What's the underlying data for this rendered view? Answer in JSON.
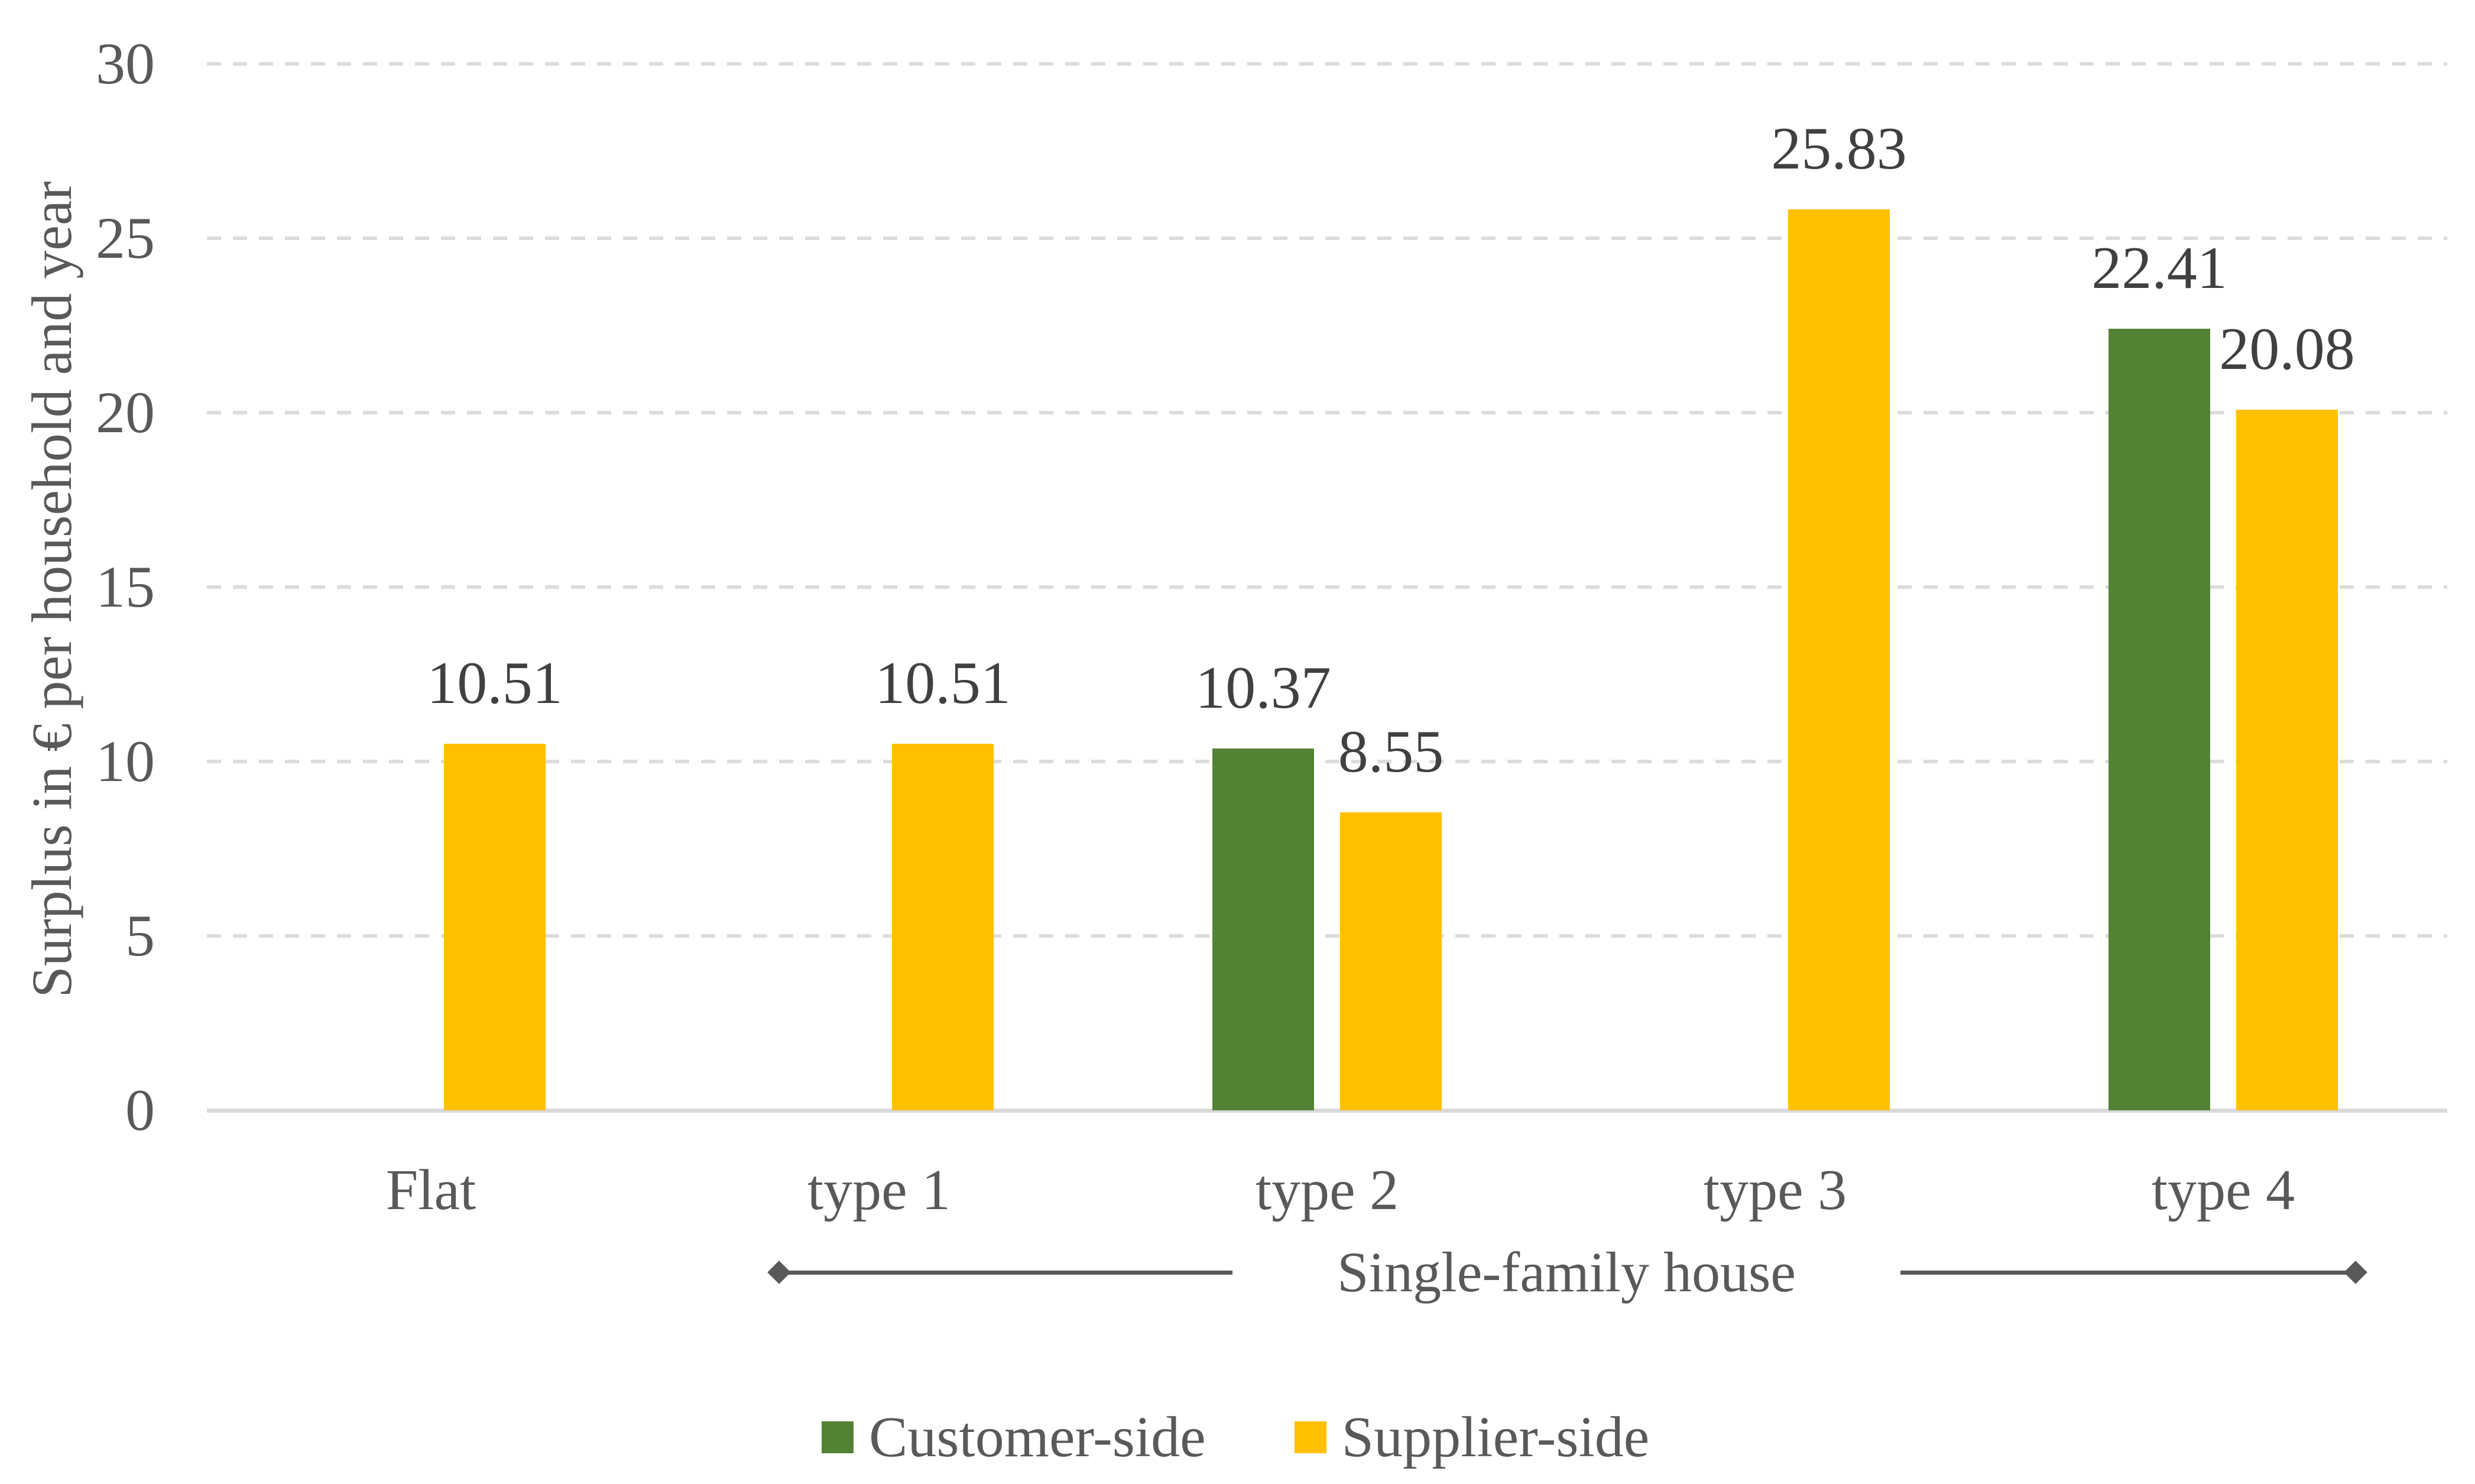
{
  "chart_data": {
    "type": "bar",
    "title": "",
    "categories": [
      "Flat",
      "type 1",
      "type 2",
      "type 3",
      "type 4"
    ],
    "series": [
      {
        "name": "Customer-side",
        "color": "#548235",
        "values": [
          null,
          null,
          10.37,
          null,
          22.41
        ]
      },
      {
        "name": "Supplier-side",
        "color": "#FFC000",
        "values": [
          10.51,
          10.51,
          8.55,
          25.83,
          20.08
        ]
      }
    ],
    "data_labels": [
      {
        "category": "Flat",
        "series": "Supplier-side",
        "text": "10.51"
      },
      {
        "category": "type 1",
        "series": "Supplier-side",
        "text": "10.51"
      },
      {
        "category": "type 2",
        "series": "Customer-side",
        "text": "10.37"
      },
      {
        "category": "type 2",
        "series": "Supplier-side",
        "text": "8.55"
      },
      {
        "category": "type 3",
        "series": "Supplier-side",
        "text": "25.83"
      },
      {
        "category": "type 4",
        "series": "Customer-side",
        "text": "22.41"
      },
      {
        "category": "type 4",
        "series": "Supplier-side",
        "text": "20.08"
      }
    ],
    "xlabel": "",
    "ylabel": "Surplus in € per household and year",
    "ylim": [
      0,
      30
    ],
    "yticks": [
      0,
      5,
      10,
      15,
      20,
      25,
      30
    ],
    "grid": "horizontal-dashed",
    "legend_position": "bottom-center",
    "annotation": {
      "text": "Single-family house",
      "spans_categories": [
        "type 1",
        "type 4"
      ],
      "style": "horizontal line with diamond ends, split by centered text"
    }
  },
  "colors": {
    "customer_side": "#548235",
    "supplier_side": "#FFC000",
    "axis_text": "#595959",
    "data_label_text": "#404040",
    "gridline": "#dcdcdc",
    "axis_line": "#d9d9d9",
    "annotation": "#595959",
    "background": "#ffffff"
  }
}
